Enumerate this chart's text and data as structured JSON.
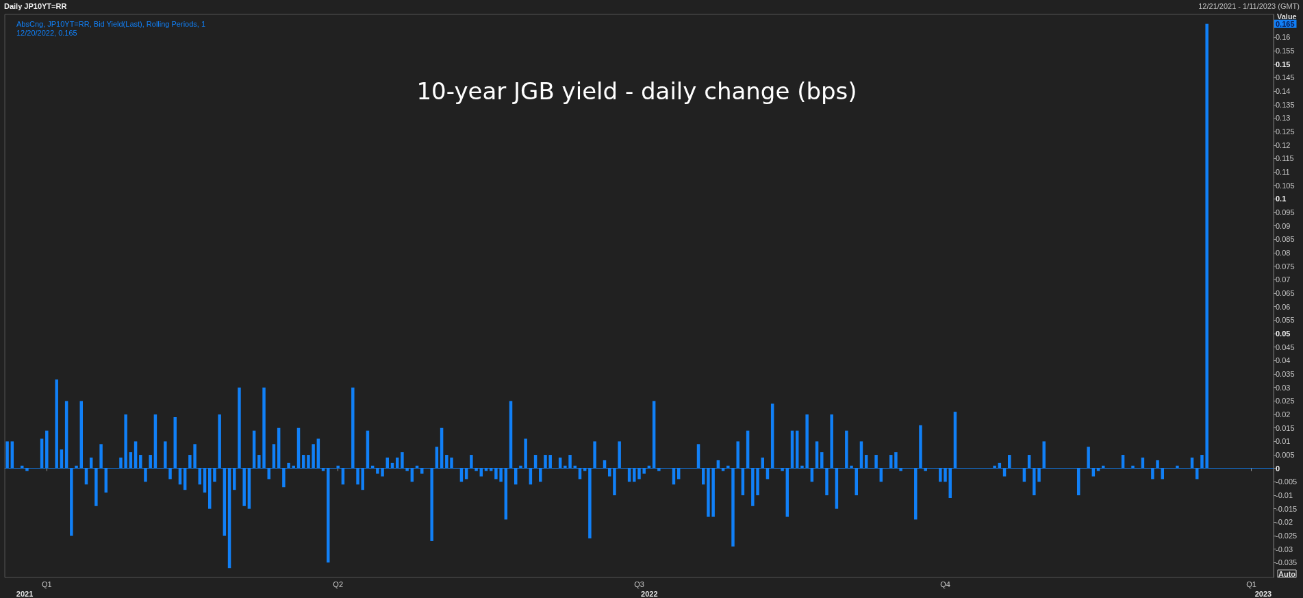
{
  "chart_data": {
    "type": "bar",
    "title": "10-year JGB yield - daily change (bps)",
    "ylabel": "Value",
    "categories": [
      null,
      null,
      null,
      null,
      null,
      null,
      null,
      null,
      "Q1",
      null,
      null,
      null,
      null,
      null,
      null,
      null,
      null,
      null,
      null,
      null,
      null,
      null,
      null,
      null,
      null,
      null,
      null,
      null,
      null,
      null,
      null,
      null,
      null,
      null,
      null,
      null,
      null,
      null,
      null,
      null,
      null,
      null,
      null,
      null,
      null,
      null,
      null,
      null,
      null,
      null,
      null,
      null,
      null,
      null,
      null,
      null,
      null,
      null,
      null,
      null,
      null,
      null,
      null,
      null,
      null,
      null,
      null,
      "Q2",
      null,
      null,
      null,
      null,
      null,
      null,
      null,
      null,
      null,
      null,
      null,
      null,
      null,
      null,
      null,
      null,
      null,
      null,
      null,
      null,
      null,
      null,
      null,
      null,
      null,
      null,
      null,
      null,
      null,
      null,
      null,
      null,
      null,
      null,
      null,
      null,
      null,
      null,
      null,
      null,
      null,
      null,
      null,
      null,
      null,
      null,
      null,
      null,
      null,
      null,
      null,
      null,
      null,
      null,
      null,
      null,
      null,
      null,
      null,
      null,
      "Q3",
      null,
      null,
      null,
      null,
      null,
      null,
      null,
      null,
      null,
      null,
      null,
      null,
      null,
      null,
      null,
      null,
      null,
      null,
      null,
      null,
      null,
      null,
      null,
      null,
      null,
      null,
      null,
      null,
      null,
      null,
      null,
      null,
      null,
      null,
      null,
      null,
      null,
      null,
      null,
      null,
      null,
      null,
      null,
      null,
      null,
      null,
      null,
      null,
      null,
      null,
      null,
      null,
      null,
      null,
      null,
      null,
      null,
      null,
      null,
      null,
      null,
      "Q4",
      null,
      null,
      null,
      null,
      null,
      null,
      null,
      null,
      null,
      null,
      null,
      null,
      null,
      null,
      null,
      null,
      null,
      null,
      null,
      null,
      null,
      null,
      null,
      null,
      null,
      null,
      null,
      null,
      null,
      null,
      null,
      null,
      null,
      null,
      null,
      null,
      null,
      null,
      null,
      null,
      null,
      null,
      null,
      null,
      null,
      null,
      null,
      null,
      null,
      null,
      null,
      null,
      null,
      null,
      null,
      null,
      null,
      null,
      null,
      null,
      null,
      "Q1",
      null,
      null,
      null,
      null
    ],
    "series": [
      {
        "name": "AbsCng, JP10YT=RR, Bid Yield(Last), Rolling Periods, 1",
        "color": "#1180f7",
        "values": [
          0.01,
          0.01,
          0,
          0.001,
          -0.001,
          0,
          0,
          0.011,
          0.014,
          0,
          0.033,
          0.007,
          0.025,
          -0.025,
          0.001,
          0.025,
          -0.006,
          0.004,
          -0.014,
          0.009,
          -0.009,
          0,
          0,
          0.004,
          0.02,
          0.006,
          0.01,
          0.005,
          -0.005,
          0.005,
          0.02,
          0,
          0.01,
          -0.004,
          0.019,
          -0.006,
          -0.008,
          0.005,
          0.009,
          -0.006,
          -0.009,
          -0.015,
          -0.005,
          0.02,
          -0.025,
          -0.037,
          -0.008,
          0.03,
          -0.014,
          -0.015,
          0.014,
          0.005,
          0.03,
          -0.004,
          0.009,
          0.015,
          -0.007,
          0.002,
          0.001,
          0.015,
          0.005,
          0.005,
          0.009,
          0.011,
          -0.001,
          -0.035,
          0,
          0.001,
          -0.006,
          0,
          0.03,
          -0.006,
          -0.008,
          0.014,
          0.001,
          -0.002,
          -0.003,
          0.004,
          0.002,
          0.004,
          0.006,
          -0.001,
          -0.005,
          0.001,
          -0.002,
          0,
          -0.027,
          0.008,
          0.015,
          0.005,
          0.004,
          0,
          -0.005,
          -0.004,
          0.005,
          -0.001,
          -0.003,
          -0.001,
          -0.001,
          -0.004,
          -0.005,
          -0.019,
          0.025,
          -0.006,
          0.001,
          0.011,
          -0.006,
          0.005,
          -0.005,
          0.005,
          0.005,
          0,
          0.004,
          0.001,
          0.005,
          0.001,
          -0.004,
          -0.001,
          -0.026,
          0.01,
          0,
          0.003,
          -0.003,
          -0.01,
          0.01,
          0,
          -0.005,
          -0.005,
          -0.004,
          -0.002,
          0.001,
          0.025,
          -0.001,
          0,
          0,
          -0.006,
          -0.004,
          0,
          0,
          0,
          0.009,
          -0.006,
          -0.018,
          -0.018,
          0.003,
          -0.001,
          0.001,
          -0.029,
          0.01,
          -0.01,
          0.014,
          -0.014,
          -0.01,
          0.004,
          -0.004,
          0.024,
          0,
          -0.001,
          -0.018,
          0.014,
          0.014,
          0.001,
          0.02,
          -0.005,
          0.01,
          0.006,
          -0.01,
          0.02,
          -0.015,
          0,
          0.014,
          0.001,
          -0.01,
          0.01,
          0.005,
          0,
          0.005,
          -0.005,
          0,
          0.005,
          0.006,
          -0.001,
          0,
          0,
          -0.019,
          0.016,
          -0.001,
          0,
          0,
          -0.005,
          -0.005,
          -0.011,
          0.021,
          0,
          0,
          0,
          0,
          0,
          0,
          0,
          0.001,
          0.002,
          -0.003,
          0.005,
          0,
          0,
          -0.005,
          0.005,
          -0.01,
          -0.005,
          0.01,
          0,
          0,
          0,
          0,
          0,
          0,
          -0.01,
          0,
          0.008,
          -0.003,
          -0.001,
          0.001,
          0,
          0,
          0,
          0.005,
          0,
          0.001,
          0,
          0.004,
          0,
          -0.004,
          0.003,
          -0.004,
          0,
          0,
          0.001,
          0,
          0,
          0.004,
          -0.004,
          0.005,
          0.165,
          null,
          null,
          null,
          null,
          null,
          null,
          null,
          null,
          null,
          null,
          null,
          null,
          null
        ]
      }
    ],
    "ylim": [
      -0.0405,
      0.1685
    ],
    "yticks": [
      -0.035,
      -0.03,
      -0.025,
      -0.02,
      -0.015,
      -0.01,
      -0.005,
      0,
      0.005,
      0.01,
      0.015,
      0.02,
      0.025,
      0.03,
      0.035,
      0.04,
      0.045,
      0.05,
      0.055,
      0.06,
      0.065,
      0.07,
      0.075,
      0.08,
      0.085,
      0.09,
      0.095,
      0.1,
      0.105,
      0.11,
      0.115,
      0.12,
      0.125,
      0.13,
      0.135,
      0.14,
      0.145,
      0.15,
      0.155,
      0.16
    ],
    "ref_lines": [
      {
        "axis": "y",
        "value": 0,
        "color": "#1180f7"
      }
    ],
    "legend": "top left",
    "annotations": [
      "Daily JP10YT=RR",
      "12/21/2021 - 1/11/2023 (GMT)",
      "12/20/2022, 0.165",
      {
        "text": "0.165",
        "y": 0.165
      },
      "Auto",
      "2021",
      "2022",
      "2023"
    ]
  }
}
